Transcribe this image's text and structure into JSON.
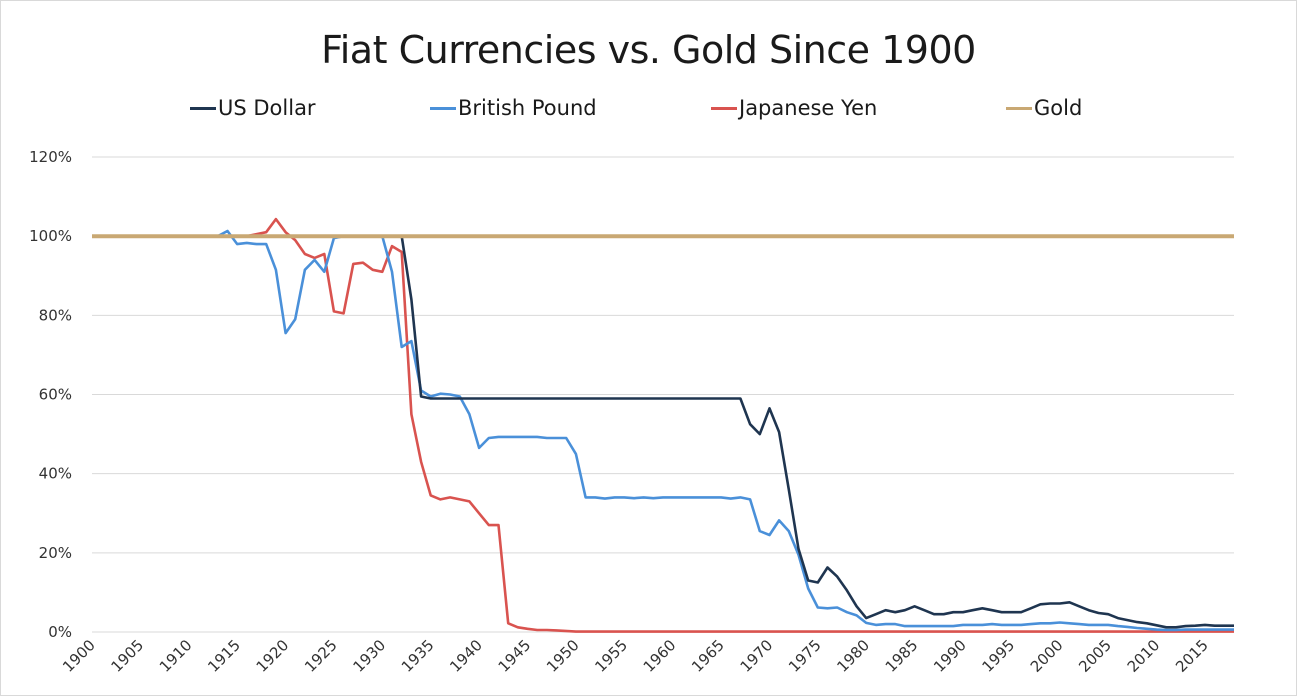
{
  "chart_data": {
    "type": "line",
    "title": "Fiat Currencies vs. Gold Since 1900",
    "xlabel": "",
    "ylabel": "",
    "legend_position": "top",
    "grid": true,
    "ylim": [
      0,
      120
    ],
    "y_ticks": [
      "0%",
      "20%",
      "40%",
      "60%",
      "80%",
      "100%",
      "120%"
    ],
    "x_ticks": [
      "1900",
      "1905",
      "1910",
      "1915",
      "1920",
      "1925",
      "1930",
      "1935",
      "1940",
      "1945",
      "1950",
      "1955",
      "1960",
      "1965",
      "1970",
      "1975",
      "1980",
      "1985",
      "1990",
      "1995",
      "2000",
      "2005",
      "2010",
      "2015"
    ],
    "x_range": [
      1900,
      2018
    ],
    "series": [
      {
        "name": "US Dollar",
        "color": "#1f3550",
        "points": [
          [
            1900,
            100
          ],
          [
            1932,
            100
          ],
          [
            1933,
            84
          ],
          [
            1934,
            59.5
          ],
          [
            1935,
            59
          ],
          [
            1967,
            59
          ],
          [
            1968,
            52.5
          ],
          [
            1969,
            50
          ],
          [
            1970,
            56.5
          ],
          [
            1971,
            50.5
          ],
          [
            1972,
            36
          ],
          [
            1973,
            21
          ],
          [
            1974,
            13
          ],
          [
            1975,
            12.5
          ],
          [
            1976,
            16.3
          ],
          [
            1977,
            14
          ],
          [
            1978,
            10.5
          ],
          [
            1979,
            6.5
          ],
          [
            1980,
            3.5
          ],
          [
            1981,
            4.5
          ],
          [
            1982,
            5.5
          ],
          [
            1983,
            5
          ],
          [
            1984,
            5.5
          ],
          [
            1985,
            6.5
          ],
          [
            1986,
            5.5
          ],
          [
            1987,
            4.5
          ],
          [
            1988,
            4.5
          ],
          [
            1989,
            5
          ],
          [
            1990,
            5
          ],
          [
            1991,
            5.5
          ],
          [
            1992,
            6
          ],
          [
            1993,
            5.5
          ],
          [
            1994,
            5
          ],
          [
            1995,
            5
          ],
          [
            1996,
            5
          ],
          [
            1997,
            6
          ],
          [
            1998,
            7
          ],
          [
            1999,
            7.2
          ],
          [
            2000,
            7.2
          ],
          [
            2001,
            7.5
          ],
          [
            2002,
            6.5
          ],
          [
            2003,
            5.5
          ],
          [
            2004,
            4.8
          ],
          [
            2005,
            4.5
          ],
          [
            2006,
            3.5
          ],
          [
            2007,
            3
          ],
          [
            2008,
            2.5
          ],
          [
            2009,
            2.2
          ],
          [
            2010,
            1.7
          ],
          [
            2011,
            1.2
          ],
          [
            2012,
            1.2
          ],
          [
            2013,
            1.5
          ],
          [
            2014,
            1.6
          ],
          [
            2015,
            1.8
          ],
          [
            2016,
            1.6
          ],
          [
            2017,
            1.6
          ],
          [
            2018,
            1.6
          ]
        ]
      },
      {
        "name": "British Pound",
        "color": "#4a90d9",
        "points": [
          [
            1900,
            100
          ],
          [
            1913,
            100
          ],
          [
            1914,
            101.3
          ],
          [
            1915,
            98
          ],
          [
            1916,
            98.3
          ],
          [
            1917,
            98
          ],
          [
            1918,
            98
          ],
          [
            1919,
            91.5
          ],
          [
            1920,
            75.5
          ],
          [
            1921,
            79
          ],
          [
            1922,
            91.5
          ],
          [
            1923,
            94
          ],
          [
            1924,
            91
          ],
          [
            1925,
            99.5
          ],
          [
            1926,
            100
          ],
          [
            1930,
            100
          ],
          [
            1931,
            91
          ],
          [
            1932,
            72
          ],
          [
            1933,
            73.5
          ],
          [
            1934,
            61
          ],
          [
            1935,
            59.5
          ],
          [
            1936,
            60.2
          ],
          [
            1937,
            60
          ],
          [
            1938,
            59.5
          ],
          [
            1939,
            55
          ],
          [
            1940,
            46.5
          ],
          [
            1941,
            49
          ],
          [
            1942,
            49.3
          ],
          [
            1946,
            49.3
          ],
          [
            1947,
            49
          ],
          [
            1949,
            49
          ],
          [
            1950,
            45
          ],
          [
            1951,
            34
          ],
          [
            1952,
            34
          ],
          [
            1953,
            33.7
          ],
          [
            1954,
            34
          ],
          [
            1955,
            34
          ],
          [
            1956,
            33.8
          ],
          [
            1957,
            34
          ],
          [
            1958,
            33.8
          ],
          [
            1959,
            34
          ],
          [
            1965,
            34
          ],
          [
            1966,
            33.7
          ],
          [
            1967,
            34
          ],
          [
            1968,
            33.5
          ],
          [
            1969,
            25.5
          ],
          [
            1970,
            24.5
          ],
          [
            1971,
            28.2
          ],
          [
            1972,
            25.5
          ],
          [
            1973,
            19.5
          ],
          [
            1974,
            11
          ],
          [
            1975,
            6.2
          ],
          [
            1976,
            6
          ],
          [
            1977,
            6.2
          ],
          [
            1978,
            5
          ],
          [
            1979,
            4.2
          ],
          [
            1980,
            2.3
          ],
          [
            1981,
            1.8
          ],
          [
            1982,
            2
          ],
          [
            1983,
            2
          ],
          [
            1984,
            1.5
          ],
          [
            1985,
            1.5
          ],
          [
            1986,
            1.5
          ],
          [
            1987,
            1.5
          ],
          [
            1988,
            1.5
          ],
          [
            1989,
            1.5
          ],
          [
            1990,
            1.8
          ],
          [
            1991,
            1.8
          ],
          [
            1992,
            1.8
          ],
          [
            1993,
            2
          ],
          [
            1994,
            1.8
          ],
          [
            1995,
            1.8
          ],
          [
            1996,
            1.8
          ],
          [
            1997,
            2
          ],
          [
            1998,
            2.2
          ],
          [
            1999,
            2.2
          ],
          [
            2000,
            2.4
          ],
          [
            2001,
            2.2
          ],
          [
            2002,
            2
          ],
          [
            2003,
            1.8
          ],
          [
            2004,
            1.8
          ],
          [
            2005,
            1.8
          ],
          [
            2006,
            1.5
          ],
          [
            2007,
            1.3
          ],
          [
            2008,
            1
          ],
          [
            2009,
            0.8
          ],
          [
            2010,
            0.6
          ],
          [
            2011,
            0.5
          ],
          [
            2012,
            0.5
          ],
          [
            2013,
            0.6
          ],
          [
            2014,
            0.6
          ],
          [
            2015,
            0.6
          ],
          [
            2016,
            0.6
          ],
          [
            2017,
            0.6
          ],
          [
            2018,
            0.6
          ]
        ]
      },
      {
        "name": "Japanese Yen",
        "color": "#d9534f",
        "points": [
          [
            1900,
            100
          ],
          [
            1916,
            100
          ],
          [
            1917,
            100.5
          ],
          [
            1918,
            101
          ],
          [
            1919,
            104.3
          ],
          [
            1920,
            101
          ],
          [
            1921,
            99
          ],
          [
            1922,
            95.5
          ],
          [
            1923,
            94.5
          ],
          [
            1924,
            95.5
          ],
          [
            1925,
            81
          ],
          [
            1926,
            80.5
          ],
          [
            1927,
            93
          ],
          [
            1928,
            93.3
          ],
          [
            1929,
            91.5
          ],
          [
            1930,
            91
          ],
          [
            1931,
            97.5
          ],
          [
            1932,
            96
          ],
          [
            1933,
            55
          ],
          [
            1934,
            43
          ],
          [
            1935,
            34.5
          ],
          [
            1936,
            33.5
          ],
          [
            1937,
            34
          ],
          [
            1938,
            33.5
          ],
          [
            1939,
            33
          ],
          [
            1940,
            30
          ],
          [
            1941,
            27
          ],
          [
            1942,
            27
          ],
          [
            1943,
            2.2
          ],
          [
            1944,
            1.2
          ],
          [
            1945,
            0.8
          ],
          [
            1946,
            0.5
          ],
          [
            1947,
            0.5
          ],
          [
            1948,
            0.4
          ],
          [
            1950,
            0.1
          ],
          [
            2018,
            0.1
          ]
        ]
      },
      {
        "name": "Gold",
        "color": "#c9a873",
        "points": [
          [
            1900,
            100
          ],
          [
            2018,
            100
          ]
        ]
      }
    ]
  }
}
